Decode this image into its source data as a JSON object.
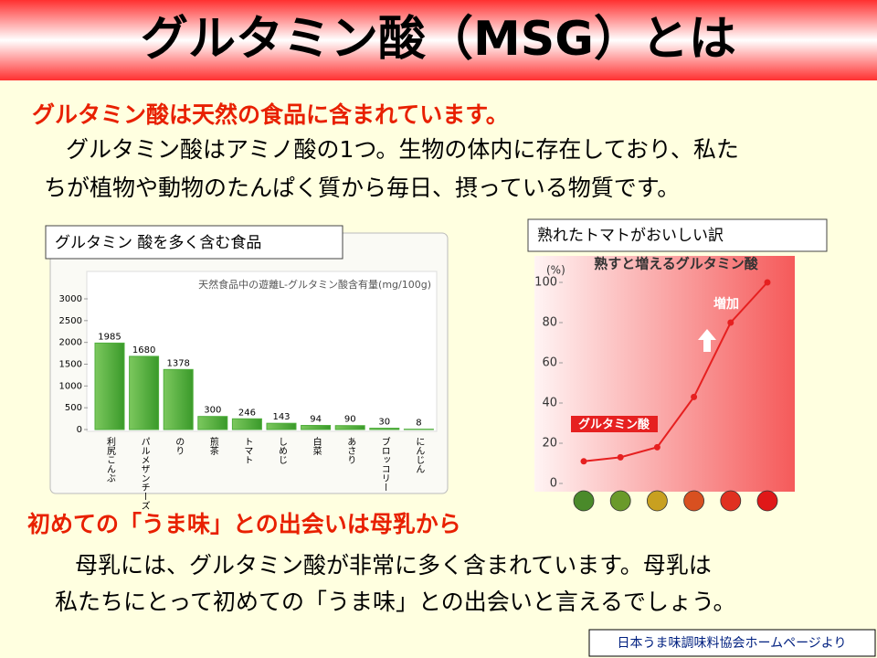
{
  "title": "グルタミン酸（MSG）とは",
  "section1": {
    "heading": "グルタミン酸は天然の食品に含まれています。",
    "body": [
      "グルタミン酸はアミノ酸の1つ。生物の体内に存在しており、私た",
      "ちが植物や動物のたんぱく質から毎日、摂っている物質です。"
    ]
  },
  "section2": {
    "heading": "初めての「うま味」との出会いは母乳から",
    "body": [
      "母乳には、グルタミン酸が非常に多く含まれています。母乳は",
      "私たちにとって初めての「うま味」との出会いと言えるでしょう。"
    ]
  },
  "source": "日本うま味調味料協会ホームページより",
  "chart_data": [
    {
      "type": "bar",
      "caption": "グルタミン 酸を多く含む食品",
      "title": "天然食品中の遊離L-グルタミン酸含有量(mg/100g)",
      "categories": [
        "利尻こんぶ",
        "パルメザンチーズ",
        "のり",
        "煎茶",
        "トマト",
        "しめじ",
        "白菜",
        "あさり",
        "ブロッコリー",
        "にんじん"
      ],
      "values": [
        1985,
        1680,
        1378,
        300,
        246,
        143,
        94,
        90,
        30,
        8
      ],
      "color": "#4fae3c",
      "ylim": [
        0,
        3000
      ],
      "yticks": [
        0,
        500,
        1000,
        1500,
        2000,
        2500,
        3000
      ]
    },
    {
      "type": "line",
      "caption": "熟れたトマトがおいしい訳",
      "title": "熟すと増えるグルタミン酸",
      "y_label": "(%)",
      "annotation": "増加",
      "categories": [
        null,
        null,
        null,
        null,
        null,
        null
      ],
      "series": [
        {
          "name": "グルタミン酸",
          "color": "#e62020",
          "values": [
            11,
            13,
            18,
            43,
            80,
            100
          ]
        }
      ],
      "ylim": [
        0,
        100
      ],
      "yticks": [
        0,
        20,
        40,
        60,
        80,
        100
      ]
    }
  ]
}
